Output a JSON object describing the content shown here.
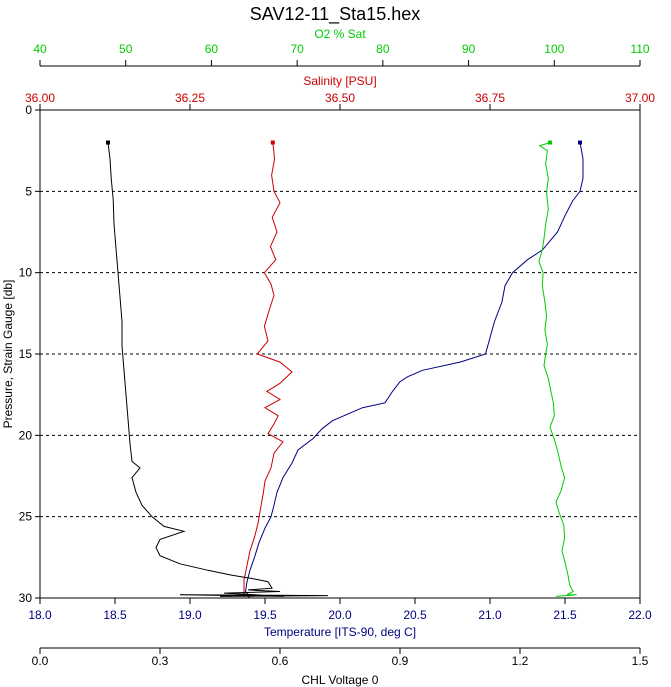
{
  "chart_data": {
    "type": "line",
    "title": "SAV12-11_Sta15.hex",
    "axes": {
      "pressure": {
        "label": "Pressure, Strain Gauge [db]",
        "range": [
          0,
          30
        ],
        "inverted": true,
        "ticks": [
          "0",
          "5",
          "10",
          "15",
          "20",
          "25",
          "30"
        ],
        "color": "#000000"
      },
      "o2": {
        "label": "O2 % Sat",
        "range": [
          40,
          110
        ],
        "ticks": [
          "40",
          "50",
          "60",
          "70",
          "80",
          "90",
          "100",
          "110"
        ],
        "color": "#00cc00"
      },
      "salinity": {
        "label": "Salinity [PSU]",
        "range": [
          36.0,
          37.0
        ],
        "ticks": [
          "36.00",
          "36.25",
          "36.50",
          "36.75",
          "37.00"
        ],
        "color": "#cc0000"
      },
      "temperature": {
        "label": "Temperature [ITS-90, deg C]",
        "range": [
          18.0,
          22.0
        ],
        "ticks": [
          "18.0",
          "18.5",
          "19.0",
          "19.5",
          "20.0",
          "20.5",
          "21.0",
          "21.5",
          "22.0"
        ],
        "color": "#000080"
      },
      "chl": {
        "label": "CHL Voltage 0",
        "range": [
          0.0,
          1.5
        ],
        "ticks": [
          "0.0",
          "0.3",
          "0.6",
          "0.9",
          "1.2",
          "1.5"
        ],
        "color": "#000000"
      }
    },
    "grid": {
      "horizontal_dashed_at": [
        5,
        10,
        15,
        20,
        25
      ]
    },
    "series": [
      {
        "axis": "temperature",
        "color": "#000080",
        "points": [
          [
            21.6,
            2.0
          ],
          [
            21.62,
            3.0
          ],
          [
            21.62,
            4.2
          ],
          [
            21.6,
            5.0
          ],
          [
            21.55,
            5.6
          ],
          [
            21.5,
            6.5
          ],
          [
            21.45,
            7.5
          ],
          [
            21.35,
            8.6
          ],
          [
            21.25,
            9.2
          ],
          [
            21.15,
            10.0
          ],
          [
            21.1,
            10.8
          ],
          [
            21.08,
            11.8
          ],
          [
            21.03,
            13.0
          ],
          [
            21.0,
            14.0
          ],
          [
            20.97,
            15.0
          ],
          [
            20.8,
            15.5
          ],
          [
            20.55,
            16.0
          ],
          [
            20.45,
            16.4
          ],
          [
            20.4,
            16.7
          ],
          [
            20.35,
            17.3
          ],
          [
            20.3,
            18.0
          ],
          [
            20.15,
            18.3
          ],
          [
            20.05,
            18.7
          ],
          [
            19.95,
            19.1
          ],
          [
            19.88,
            19.6
          ],
          [
            19.82,
            20.2
          ],
          [
            19.72,
            20.9
          ],
          [
            19.68,
            21.7
          ],
          [
            19.62,
            22.6
          ],
          [
            19.58,
            23.5
          ],
          [
            19.56,
            24.3
          ],
          [
            19.54,
            25.0
          ],
          [
            19.5,
            25.7
          ],
          [
            19.46,
            26.6
          ],
          [
            19.43,
            27.5
          ],
          [
            19.4,
            28.3
          ],
          [
            19.38,
            29.0
          ],
          [
            19.37,
            29.6
          ],
          [
            19.4,
            29.9
          ]
        ]
      },
      {
        "axis": "salinity",
        "color": "#cc0000",
        "points": [
          [
            36.388,
            2.0
          ],
          [
            36.391,
            3.0
          ],
          [
            36.386,
            4.0
          ],
          [
            36.39,
            5.0
          ],
          [
            36.4,
            5.7
          ],
          [
            36.387,
            6.6
          ],
          [
            36.395,
            7.5
          ],
          [
            36.384,
            8.4
          ],
          [
            36.393,
            9.2
          ],
          [
            36.374,
            10.0
          ],
          [
            36.385,
            10.7
          ],
          [
            36.39,
            11.4
          ],
          [
            36.382,
            12.3
          ],
          [
            36.374,
            13.3
          ],
          [
            36.38,
            14.2
          ],
          [
            36.362,
            15.0
          ],
          [
            36.4,
            15.5
          ],
          [
            36.42,
            16.1
          ],
          [
            36.4,
            16.8
          ],
          [
            36.378,
            17.3
          ],
          [
            36.4,
            17.8
          ],
          [
            36.375,
            18.3
          ],
          [
            36.397,
            18.8
          ],
          [
            36.39,
            19.3
          ],
          [
            36.38,
            19.9
          ],
          [
            36.405,
            20.4
          ],
          [
            36.39,
            21.1
          ],
          [
            36.385,
            22.0
          ],
          [
            36.375,
            22.8
          ],
          [
            36.372,
            23.6
          ],
          [
            36.368,
            24.4
          ],
          [
            36.364,
            25.3
          ],
          [
            36.358,
            26.2
          ],
          [
            36.35,
            27.1
          ],
          [
            36.345,
            28.0
          ],
          [
            36.34,
            28.9
          ],
          [
            36.34,
            29.7
          ],
          [
            36.35,
            30.0
          ]
        ]
      },
      {
        "axis": "o2",
        "color": "#00cc00",
        "points": [
          [
            99.5,
            2.0
          ],
          [
            98.3,
            2.2
          ],
          [
            99.2,
            2.5
          ],
          [
            99.0,
            3.3
          ],
          [
            99.3,
            4.2
          ],
          [
            99.1,
            5.1
          ],
          [
            99.3,
            6.1
          ],
          [
            99.0,
            7.0
          ],
          [
            98.8,
            7.9
          ],
          [
            98.6,
            8.6
          ],
          [
            98.2,
            9.3
          ],
          [
            98.7,
            10.0
          ],
          [
            98.6,
            10.8
          ],
          [
            98.9,
            11.8
          ],
          [
            99.1,
            12.7
          ],
          [
            98.9,
            13.5
          ],
          [
            99.2,
            14.4
          ],
          [
            99.0,
            15.0
          ],
          [
            98.8,
            15.7
          ],
          [
            99.3,
            16.5
          ],
          [
            99.6,
            17.3
          ],
          [
            99.9,
            18.0
          ],
          [
            100.0,
            18.8
          ],
          [
            99.5,
            19.5
          ],
          [
            100.1,
            20.4
          ],
          [
            100.5,
            21.2
          ],
          [
            100.8,
            21.9
          ],
          [
            101.2,
            22.6
          ],
          [
            100.8,
            23.4
          ],
          [
            100.2,
            24.1
          ],
          [
            100.6,
            24.8
          ],
          [
            101.1,
            25.5
          ],
          [
            101.2,
            26.3
          ],
          [
            100.9,
            27.1
          ],
          [
            101.3,
            27.9
          ],
          [
            101.6,
            28.6
          ],
          [
            101.8,
            29.2
          ],
          [
            102.2,
            29.6
          ],
          [
            101.5,
            29.8
          ],
          [
            102.6,
            29.8
          ],
          [
            100.2,
            29.9
          ]
        ]
      },
      {
        "axis": "chl",
        "color": "#000000",
        "points": [
          [
            0.17,
            2.0
          ],
          [
            0.175,
            3.0
          ],
          [
            0.178,
            4.2
          ],
          [
            0.183,
            5.5
          ],
          [
            0.185,
            7.0
          ],
          [
            0.19,
            8.5
          ],
          [
            0.195,
            10.0
          ],
          [
            0.2,
            11.5
          ],
          [
            0.205,
            13.0
          ],
          [
            0.205,
            14.5
          ],
          [
            0.21,
            16.0
          ],
          [
            0.215,
            17.5
          ],
          [
            0.22,
            19.0
          ],
          [
            0.225,
            20.5
          ],
          [
            0.23,
            21.6
          ],
          [
            0.25,
            22.0
          ],
          [
            0.23,
            22.6
          ],
          [
            0.24,
            23.5
          ],
          [
            0.255,
            24.3
          ],
          [
            0.28,
            25.0
          ],
          [
            0.31,
            25.6
          ],
          [
            0.36,
            25.9
          ],
          [
            0.3,
            26.4
          ],
          [
            0.29,
            26.9
          ],
          [
            0.3,
            27.4
          ],
          [
            0.35,
            27.9
          ],
          [
            0.42,
            28.3
          ],
          [
            0.48,
            28.6
          ],
          [
            0.53,
            28.8
          ],
          [
            0.57,
            29.0
          ],
          [
            0.58,
            29.4
          ],
          [
            0.52,
            29.5
          ],
          [
            0.6,
            29.6
          ],
          [
            0.46,
            29.7
          ],
          [
            0.61,
            29.9
          ],
          [
            0.35,
            29.8
          ],
          [
            0.72,
            29.85
          ],
          [
            0.45,
            29.9
          ]
        ]
      }
    ]
  }
}
